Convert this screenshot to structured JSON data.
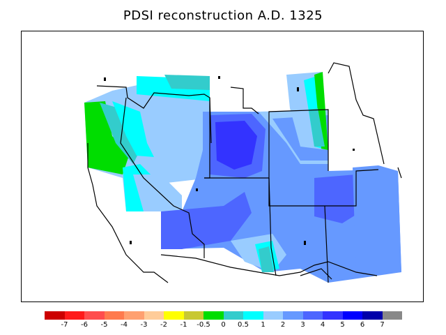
{
  "title": "PDSI reconstruction A.D. 1325",
  "legend": {
    "colors": [
      "#cc0000",
      "#ff1a1a",
      "#ff4d4d",
      "#ff7a4d",
      "#ffa070",
      "#ffcc99",
      "#ffff00",
      "#c8c832",
      "#00dd00",
      "#33cccc",
      "#00ffff",
      "#99ccff",
      "#6699ff",
      "#4d66ff",
      "#3333ff",
      "#0000ff",
      "#0000aa",
      "#888888"
    ],
    "labels": [
      "-7",
      "-6",
      "-5",
      "-4",
      "-3",
      "-2",
      "-1",
      "-0.5",
      "0",
      "0.5",
      "1",
      "2",
      "3",
      "4",
      "5",
      "6",
      "7"
    ]
  }
}
